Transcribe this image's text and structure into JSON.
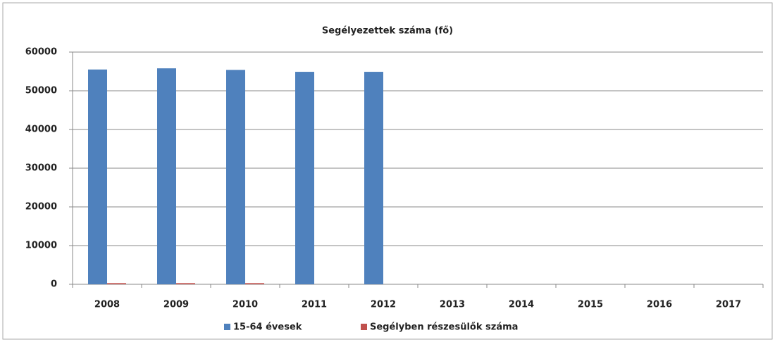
{
  "chart_data": {
    "type": "bar",
    "title": "Segélyezettek száma (fő)",
    "categories": [
      "2008",
      "2009",
      "2010",
      "2011",
      "2012",
      "2013",
      "2014",
      "2015",
      "2016",
      "2017"
    ],
    "series": [
      {
        "name": "15-64 évesek",
        "color": "#4f81bd",
        "values": [
          55500,
          55800,
          55400,
          54900,
          54900,
          null,
          null,
          null,
          null,
          null
        ]
      },
      {
        "name": "Segélyben részesülők száma",
        "color": "#c0504d",
        "values": [
          300,
          300,
          300,
          null,
          null,
          null,
          null,
          null,
          null,
          null
        ]
      }
    ],
    "ylim": [
      0,
      60000
    ],
    "yticks": [
      0,
      10000,
      20000,
      30000,
      40000,
      50000,
      60000
    ],
    "grid": true,
    "legend": "bottom"
  }
}
